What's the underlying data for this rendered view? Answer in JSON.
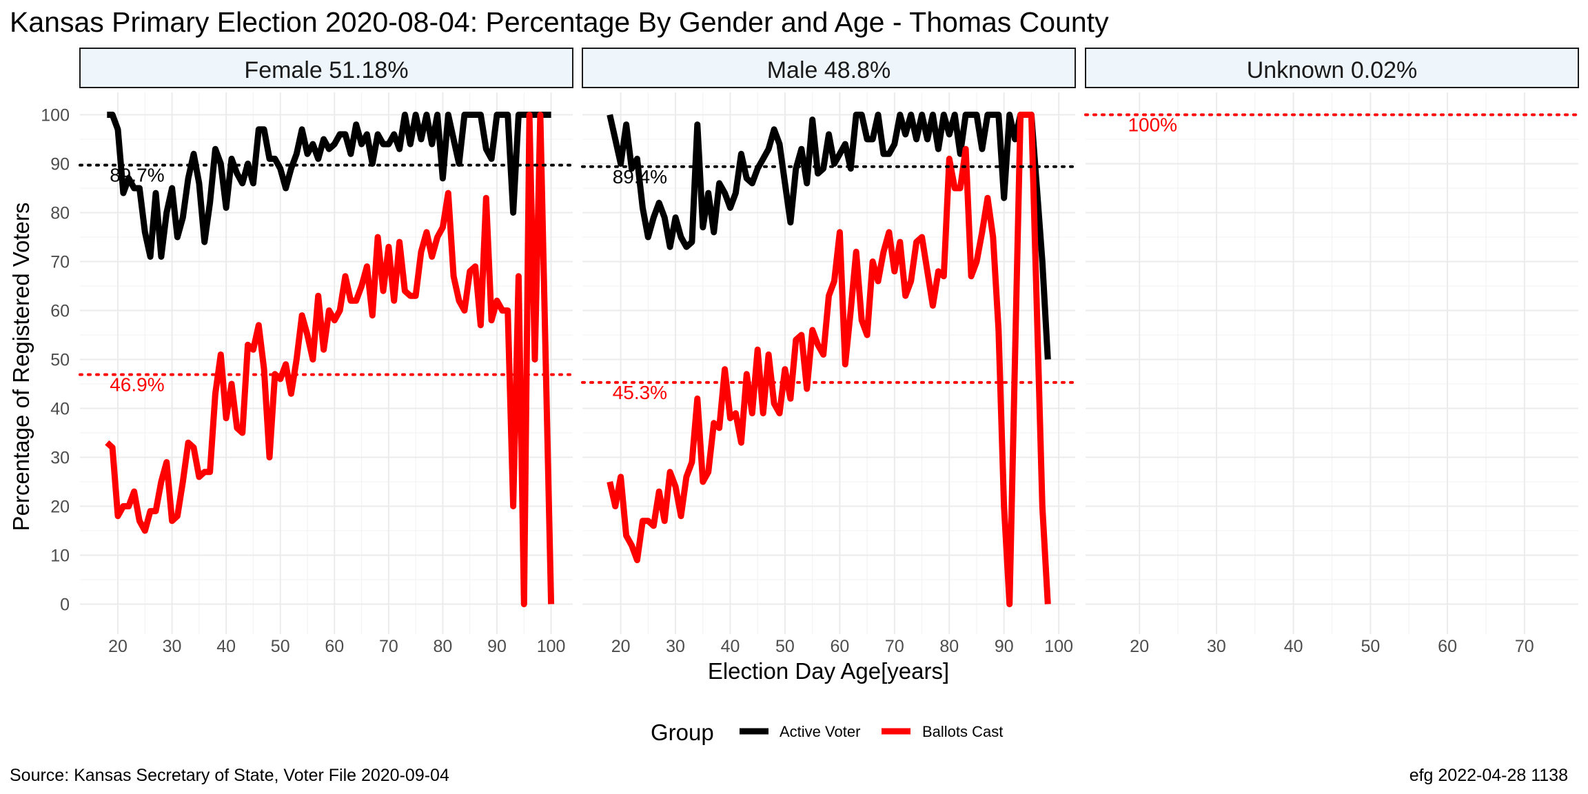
{
  "chart_data": {
    "type": "line",
    "title": "Kansas Primary Election 2020-08-04:  Percentage By Gender and Age - Thomas County",
    "xlabel": "Election Day Age[years]",
    "ylabel": "Percentage of Registered Voters",
    "ylim": [
      0,
      100
    ],
    "yticks": [
      0,
      10,
      20,
      30,
      40,
      50,
      60,
      70,
      80,
      90,
      100
    ],
    "grid": true,
    "legend": {
      "title": "Group",
      "placement": "bottom",
      "entries": [
        {
          "label": "Active Voter",
          "color": "#000000"
        },
        {
          "label": "Ballots Cast",
          "color": "#ff0000"
        }
      ]
    },
    "caption_left": "Source:  Kansas Secretary of State, Voter File  2020-09-04",
    "caption_right": "efg 2022-04-28 1138",
    "panels": [
      {
        "label": "Female 51.18%",
        "xlim": [
          13,
          104
        ],
        "xticks": [
          20,
          30,
          40,
          50,
          60,
          70,
          80,
          90,
          100
        ],
        "ref_lines": [
          {
            "series": "Active Voter",
            "value": 89.7,
            "label": "89.7%",
            "color": "#000000"
          },
          {
            "series": "Ballots Cast",
            "value": 46.9,
            "label": "46.9%",
            "color": "#ff0000"
          }
        ],
        "series": [
          {
            "name": "Active Voter",
            "color": "#000000",
            "x": [
              18,
              19,
              20,
              21,
              22,
              23,
              24,
              25,
              26,
              27,
              28,
              29,
              30,
              31,
              32,
              33,
              34,
              35,
              36,
              37,
              38,
              39,
              40,
              41,
              42,
              43,
              44,
              45,
              46,
              47,
              48,
              49,
              50,
              51,
              52,
              53,
              54,
              55,
              56,
              57,
              58,
              59,
              60,
              61,
              62,
              63,
              64,
              65,
              66,
              67,
              68,
              69,
              70,
              71,
              72,
              73,
              74,
              75,
              76,
              77,
              78,
              79,
              80,
              81,
              82,
              83,
              84,
              85,
              86,
              87,
              88,
              89,
              90,
              91,
              92,
              93,
              94,
              95,
              96,
              97,
              98,
              99,
              100
            ],
            "y": [
              100,
              100,
              97,
              84,
              87,
              85,
              85,
              76,
              71,
              84,
              71,
              80,
              85,
              75,
              79,
              87,
              92,
              86,
              74,
              82,
              93,
              90,
              81,
              91,
              88,
              86,
              90,
              86,
              97,
              97,
              91,
              91,
              89,
              85,
              89,
              92,
              97,
              92,
              94,
              91,
              95,
              93,
              94,
              96,
              96,
              92,
              98,
              94,
              96,
              90,
              96,
              94,
              94,
              96,
              93,
              100,
              94,
              100,
              95,
              100,
              94,
              100,
              87,
              100,
              95,
              90,
              100,
              100,
              100,
              100,
              93,
              91,
              100,
              100,
              100,
              80,
              100,
              100,
              100,
              100,
              100,
              100,
              100
            ]
          },
          {
            "name": "Ballots Cast",
            "color": "#ff0000",
            "x": [
              18,
              19,
              20,
              21,
              22,
              23,
              24,
              25,
              26,
              27,
              28,
              29,
              30,
              31,
              32,
              33,
              34,
              35,
              36,
              37,
              38,
              39,
              40,
              41,
              42,
              43,
              44,
              45,
              46,
              47,
              48,
              49,
              50,
              51,
              52,
              53,
              54,
              55,
              56,
              57,
              58,
              59,
              60,
              61,
              62,
              63,
              64,
              65,
              66,
              67,
              68,
              69,
              70,
              71,
              72,
              73,
              74,
              75,
              76,
              77,
              78,
              79,
              80,
              81,
              82,
              83,
              84,
              85,
              86,
              87,
              88,
              89,
              90,
              91,
              92,
              93,
              94,
              95,
              96,
              97,
              98,
              99,
              100
            ],
            "y": [
              33,
              32,
              18,
              20,
              20,
              23,
              17,
              15,
              19,
              19,
              25,
              29,
              17,
              18,
              25,
              33,
              32,
              26,
              27,
              27,
              43,
              51,
              38,
              45,
              36,
              35,
              53,
              52,
              57,
              48,
              30,
              47,
              46,
              49,
              43,
              50,
              59,
              55,
              50,
              63,
              52,
              60,
              58,
              60,
              67,
              62,
              62,
              65,
              69,
              59,
              75,
              64,
              73,
              62,
              74,
              64,
              63,
              63,
              72,
              76,
              71,
              75,
              77,
              84,
              67,
              62,
              60,
              68,
              69,
              57,
              83,
              58,
              62,
              60,
              60,
              20,
              67,
              0,
              100,
              50,
              100,
              50,
              0
            ]
          }
        ]
      },
      {
        "label": "Male 48.8%",
        "xlim": [
          13,
          103
        ],
        "xticks": [
          20,
          30,
          40,
          50,
          60,
          70,
          80,
          90,
          100
        ],
        "ref_lines": [
          {
            "series": "Active Voter",
            "value": 89.4,
            "label": "89.4%",
            "color": "#000000"
          },
          {
            "series": "Ballots Cast",
            "value": 45.3,
            "label": "45.3%",
            "color": "#ff0000"
          }
        ],
        "series": [
          {
            "name": "Active Voter",
            "color": "#000000",
            "x": [
              18,
              19,
              20,
              21,
              22,
              23,
              24,
              25,
              26,
              27,
              28,
              29,
              30,
              31,
              32,
              33,
              34,
              35,
              36,
              37,
              38,
              39,
              40,
              41,
              42,
              43,
              44,
              45,
              46,
              47,
              48,
              49,
              50,
              51,
              52,
              53,
              54,
              55,
              56,
              57,
              58,
              59,
              60,
              61,
              62,
              63,
              64,
              65,
              66,
              67,
              68,
              69,
              70,
              71,
              72,
              73,
              74,
              75,
              76,
              77,
              78,
              79,
              80,
              81,
              82,
              83,
              84,
              85,
              86,
              87,
              88,
              89,
              90,
              91,
              92,
              93,
              94,
              95,
              96,
              97,
              98
            ],
            "y": [
              100,
              95,
              90,
              98,
              89,
              91,
              81,
              75,
              79,
              82,
              79,
              73,
              79,
              75,
              73,
              74,
              98,
              77,
              84,
              76,
              86,
              84,
              81,
              84,
              92,
              87,
              86,
              89,
              91,
              93,
              97,
              94,
              86,
              78,
              89,
              93,
              86,
              99,
              88,
              89,
              96,
              90,
              92,
              94,
              89,
              100,
              100,
              95,
              95,
              100,
              92,
              92,
              94,
              100,
              96,
              100,
              95,
              100,
              95,
              100,
              93,
              100,
              96,
              100,
              92,
              100,
              100,
              100,
              93,
              100,
              100,
              100,
              83,
              100,
              95,
              100,
              100,
              100,
              85,
              70,
              50
            ]
          },
          {
            "name": "Ballots Cast",
            "color": "#ff0000",
            "x": [
              18,
              19,
              20,
              21,
              22,
              23,
              24,
              25,
              26,
              27,
              28,
              29,
              30,
              31,
              32,
              33,
              34,
              35,
              36,
              37,
              38,
              39,
              40,
              41,
              42,
              43,
              44,
              45,
              46,
              47,
              48,
              49,
              50,
              51,
              52,
              53,
              54,
              55,
              56,
              57,
              58,
              59,
              60,
              61,
              62,
              63,
              64,
              65,
              66,
              67,
              68,
              69,
              70,
              71,
              72,
              73,
              74,
              75,
              76,
              77,
              78,
              79,
              80,
              81,
              82,
              83,
              84,
              85,
              86,
              87,
              88,
              89,
              90,
              91,
              92,
              93,
              94,
              95,
              96,
              97,
              98
            ],
            "y": [
              25,
              20,
              26,
              14,
              12,
              9,
              17,
              17,
              16,
              23,
              17,
              27,
              24,
              18,
              26,
              29,
              42,
              25,
              27,
              37,
              36,
              48,
              38,
              39,
              33,
              47,
              39,
              52,
              39,
              51,
              41,
              39,
              48,
              42,
              54,
              55,
              44,
              56,
              53,
              51,
              63,
              66,
              76,
              49,
              60,
              72,
              58,
              55,
              70,
              66,
              72,
              76,
              68,
              74,
              63,
              66,
              74,
              75,
              68,
              61,
              68,
              67,
              91,
              85,
              85,
              93,
              67,
              70,
              76,
              83,
              75,
              56,
              20,
              0,
              50,
              100,
              100,
              100,
              60,
              20,
              0
            ]
          }
        ]
      },
      {
        "label": "Unknown 0.02%",
        "xlim": [
          13,
          77
        ],
        "xticks": [
          20,
          30,
          40,
          50,
          60,
          70
        ],
        "ref_lines": [
          {
            "series": "Ballots Cast",
            "value": 100,
            "label": "100%",
            "color": "#ff0000"
          }
        ],
        "series": []
      }
    ]
  }
}
